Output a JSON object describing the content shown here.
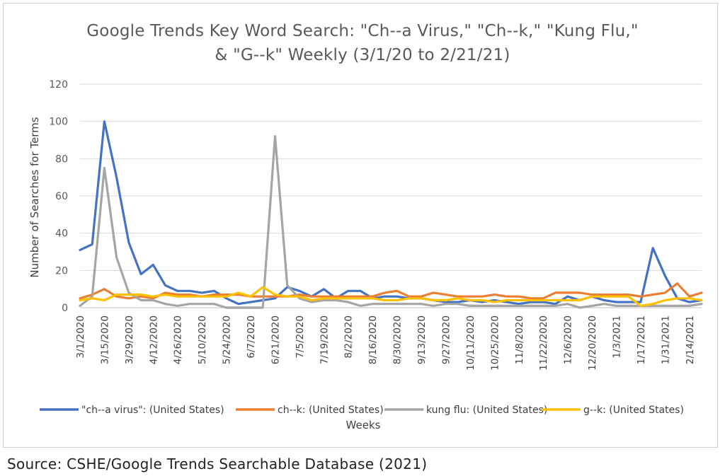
{
  "chart_data": {
    "type": "line",
    "title_line1": "Google Trends Key Word Search: \"Ch--a Virus,\" \"Ch--k,\" \"Kung Flu,\"",
    "title_line2": "& \"G--k\"  Weekly (3/1/20 to 2/21/21)",
    "xlabel": "Weeks",
    "ylabel": "Number of Searches for Terms",
    "ylim": [
      0,
      120
    ],
    "yticks": [
      0,
      20,
      40,
      60,
      80,
      100,
      120
    ],
    "grid": true,
    "legend_position": "bottom",
    "x": [
      "3/1/2020",
      "3/8/2020",
      "3/15/2020",
      "3/22/2020",
      "3/29/2020",
      "4/5/2020",
      "4/12/2020",
      "4/19/2020",
      "4/26/2020",
      "5/3/2020",
      "5/10/2020",
      "5/17/2020",
      "5/24/2020",
      "5/31/2020",
      "6/7/2020",
      "6/14/2020",
      "6/21/2020",
      "6/28/2020",
      "7/5/2020",
      "7/12/2020",
      "7/19/2020",
      "7/26/2020",
      "8/2/2020",
      "8/9/2020",
      "8/16/2020",
      "8/23/2020",
      "8/30/2020",
      "9/6/2020",
      "9/13/2020",
      "9/20/2020",
      "9/27/2020",
      "10/4/2020",
      "10/11/2020",
      "10/18/2020",
      "10/25/2020",
      "11/1/2020",
      "11/8/2020",
      "11/15/2020",
      "11/22/2020",
      "11/29/2020",
      "12/6/2020",
      "12/13/2020",
      "12/20/2020",
      "12/27/2020",
      "1/3/2021",
      "1/10/2021",
      "1/17/2021",
      "1/24/2021",
      "1/31/2021",
      "2/7/2021",
      "2/14/2021",
      "2/21/2021"
    ],
    "x_tick_labels": [
      "3/1/2020",
      "3/15/2020",
      "3/29/2020",
      "4/12/2020",
      "4/26/2020",
      "5/10/2020",
      "5/24/2020",
      "6/7/2020",
      "6/21/2020",
      "7/5/2020",
      "7/19/2020",
      "8/2/2020",
      "8/16/2020",
      "8/30/2020",
      "9/13/2020",
      "9/27/2020",
      "10/11/2020",
      "10/25/2020",
      "11/8/2020",
      "11/22/2020",
      "12/6/2020",
      "12/20/2020",
      "1/3/2021",
      "1/17/2021",
      "1/31/2021",
      "2/14/2021"
    ],
    "series": [
      {
        "name": "\"ch--a virus\": (United States)",
        "color": "#4472C4",
        "values": [
          31,
          34,
          100,
          70,
          35,
          18,
          23,
          12,
          9,
          9,
          8,
          9,
          5,
          2,
          3,
          4,
          5,
          11,
          9,
          6,
          10,
          5,
          9,
          9,
          5,
          6,
          6,
          5,
          5,
          4,
          3,
          3,
          4,
          3,
          4,
          3,
          2,
          3,
          3,
          2,
          6,
          4,
          6,
          4,
          3,
          3,
          3,
          32,
          17,
          5,
          3,
          4
        ]
      },
      {
        "name": "ch--k: (United States)",
        "color": "#ED7D31",
        "values": [
          5,
          7,
          10,
          6,
          5,
          6,
          5,
          8,
          7,
          7,
          6,
          7,
          7,
          7,
          6,
          6,
          6,
          6,
          7,
          6,
          6,
          6,
          6,
          6,
          6,
          8,
          9,
          6,
          6,
          8,
          7,
          6,
          6,
          6,
          7,
          6,
          6,
          5,
          5,
          8,
          8,
          8,
          7,
          7,
          7,
          7,
          6,
          7,
          8,
          13,
          6,
          8
        ]
      },
      {
        "name": "kung flu: (United States)",
        "color": "#A5A5A5",
        "values": [
          1,
          6,
          75,
          27,
          8,
          4,
          4,
          2,
          1,
          2,
          2,
          2,
          0,
          0,
          0,
          0,
          92,
          12,
          5,
          3,
          4,
          4,
          3,
          1,
          2,
          2,
          2,
          2,
          2,
          1,
          2,
          2,
          1,
          1,
          1,
          1,
          1,
          1,
          1,
          1,
          2,
          0,
          1,
          2,
          1,
          1,
          1,
          1,
          1,
          1,
          1,
          2
        ]
      },
      {
        "name": "g--k: (United States)",
        "color": "#FFC000",
        "values": [
          4,
          5,
          4,
          7,
          7,
          7,
          6,
          7,
          6,
          6,
          6,
          6,
          6,
          8,
          6,
          11,
          7,
          6,
          6,
          4,
          5,
          5,
          5,
          5,
          5,
          4,
          4,
          5,
          5,
          4,
          4,
          5,
          4,
          4,
          3,
          4,
          4,
          4,
          4,
          4,
          4,
          4,
          6,
          6,
          6,
          6,
          1,
          2,
          4,
          5,
          5,
          4
        ]
      }
    ]
  },
  "source_text": "Source: CSHE/Google Trends Searchable Database (2021)"
}
